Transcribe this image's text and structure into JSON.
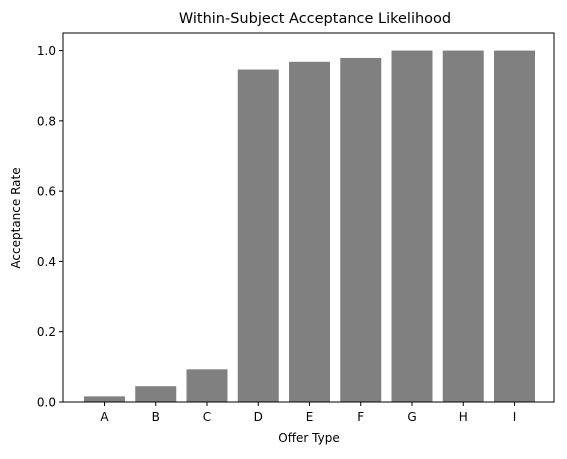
{
  "chart_data": {
    "type": "bar",
    "title": "Within-Subject Acceptance Likelihood",
    "xlabel": "Offer Type",
    "ylabel": "Acceptance Rate",
    "categories": [
      "A",
      "B",
      "C",
      "D",
      "E",
      "F",
      "G",
      "H",
      "I"
    ],
    "values": [
      0.016,
      0.045,
      0.093,
      0.946,
      0.968,
      0.979,
      1.0,
      1.0,
      1.0
    ],
    "ylim": [
      0,
      1.05
    ],
    "yticks": [
      "0.0",
      "0.2",
      "0.4",
      "0.6",
      "0.8",
      "1.0"
    ],
    "grid": false,
    "legend": "none",
    "bar_color": "#808080"
  }
}
